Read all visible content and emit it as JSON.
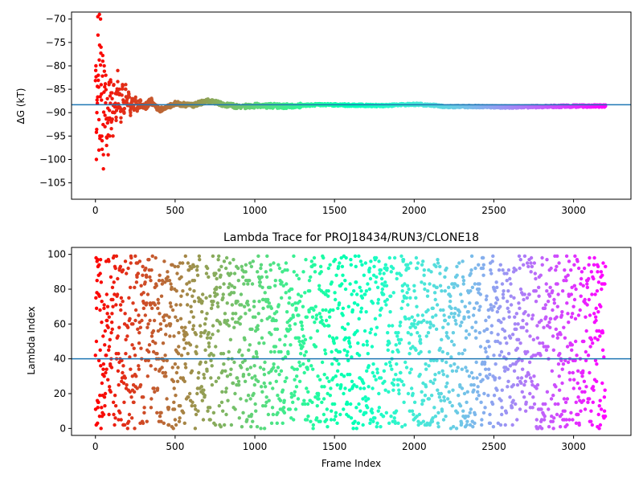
{
  "chart_data": [
    {
      "type": "scatter",
      "title": "",
      "xlabel": "",
      "ylabel": "ΔG (kT)",
      "xlim": [
        -150,
        3360
      ],
      "ylim": [
        -108.5,
        -68.5
      ],
      "xticks": [
        0,
        500,
        1000,
        1500,
        2000,
        2500,
        3000
      ],
      "xtick_labels": [
        "0",
        "500",
        "1000",
        "1500",
        "2000",
        "2500",
        "3000"
      ],
      "yticks": [
        -105,
        -100,
        -95,
        -90,
        -85,
        -80,
        -75,
        -70
      ],
      "ytick_labels": [
        "−105",
        "−100",
        "−95",
        "−90",
        "−85",
        "−80",
        "−75",
        "−70"
      ],
      "colormap": "rainbow (red at frame 0 to purple at last frame)",
      "frame_count": 3200,
      "reference_line": {
        "orientation": "horizontal",
        "y": -88.3,
        "color": "#1f77b4"
      },
      "grid": false,
      "legend": "none",
      "series": [
        {
          "x": [
            3,
            6,
            9,
            12,
            15,
            18,
            22,
            25,
            28,
            32,
            35,
            38,
            42,
            46,
            50,
            55,
            60,
            65,
            70,
            75,
            80,
            85,
            90,
            95,
            100,
            105,
            110,
            115,
            120,
            125,
            130,
            135,
            140,
            145,
            150,
            160,
            170,
            180,
            190,
            200,
            210,
            220,
            230,
            240,
            250,
            260,
            280,
            300,
            350,
            400,
            500,
            600,
            700,
            800,
            900,
            1000,
            1200,
            1400,
            1600,
            1800,
            2000,
            2100,
            2200,
            2400,
            2600,
            2800,
            3000,
            3200
          ],
          "y": [
            -80,
            -100,
            -90,
            -88,
            -69.5,
            -82,
            -98,
            -69,
            -95,
            -70,
            -76,
            -86,
            -96,
            -79,
            -102,
            -80,
            -93,
            -82,
            -97,
            -87,
            -99,
            -84,
            -95,
            -83,
            -92,
            -87,
            -95,
            -84,
            -90,
            -88,
            -91,
            -86,
            -81,
            -89,
            -85,
            -92,
            -84,
            -90,
            -85,
            -88,
            -86,
            -90,
            -87,
            -89,
            -87,
            -89,
            -88,
            -89,
            -87.5,
            -89.5,
            -88,
            -88.5,
            -87.5,
            -88.2,
            -88.8,
            -88.5,
            -88.6,
            -88.3,
            -88.4,
            -88.5,
            -88.2,
            -88.4,
            -88.7,
            -88.7,
            -88.8,
            -88.7,
            -88.6,
            -88.6
          ]
        }
      ]
    },
    {
      "type": "scatter",
      "title": "Lambda Trace for PROJ18434/RUN3/CLONE18",
      "xlabel": "Frame Index",
      "ylabel": "Lambda Index",
      "xlim": [
        -150,
        3360
      ],
      "ylim": [
        -4,
        104
      ],
      "xticks": [
        0,
        500,
        1000,
        1500,
        2000,
        2500,
        3000
      ],
      "xtick_labels": [
        "0",
        "500",
        "1000",
        "1500",
        "2000",
        "2500",
        "3000"
      ],
      "yticks": [
        0,
        20,
        40,
        60,
        80,
        100
      ],
      "ytick_labels": [
        "0",
        "20",
        "40",
        "60",
        "80",
        "100"
      ],
      "colormap": "rainbow (red at frame 0 to purple at last frame)",
      "frame_count": 3200,
      "point_density": "approximately one point every 1.5 frames, lambda index spread uniformly over 0 to 99",
      "reference_line": {
        "orientation": "horizontal",
        "y": 40,
        "color": "#1f77b4"
      },
      "grid": false,
      "legend": "none",
      "series": [
        {
          "x": [
            5,
            10,
            15,
            20,
            30,
            40,
            55,
            70,
            85,
            100,
            150,
            250,
            300,
            400,
            500,
            560,
            700,
            900,
            1100,
            1300,
            1500,
            1700,
            1900,
            2100,
            2300,
            2500,
            2700,
            2900,
            3100,
            3150,
            3180,
            3200
          ],
          "y": [
            2,
            96,
            12,
            88,
            45,
            73,
            30,
            62,
            8,
            55,
            38,
            99,
            18,
            85,
            5,
            3,
            66,
            25,
            91,
            47,
            14,
            79,
            3,
            58,
            34,
            70,
            10,
            52,
            98,
            1,
            88,
            93
          ]
        }
      ]
    }
  ]
}
